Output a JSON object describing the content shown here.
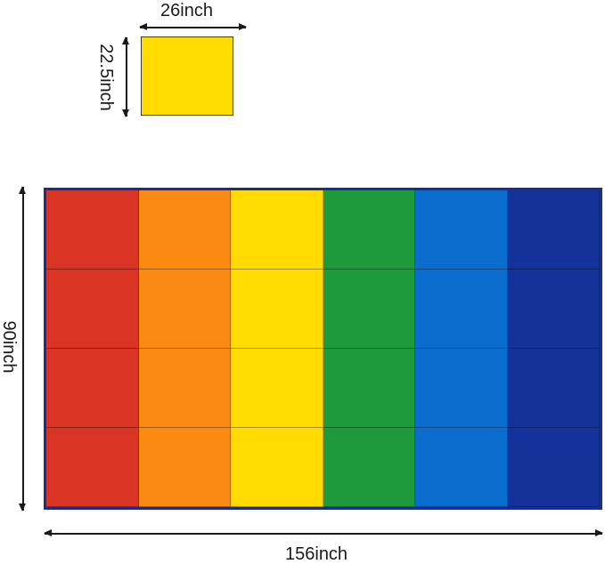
{
  "square": {
    "width_label": "26inch",
    "height_label": "22.5inch",
    "color": "#ffdb00"
  },
  "rug": {
    "height_label": "90inch",
    "width_label": "156inch",
    "border_color": "#1b2f8a",
    "rows": 4,
    "columns": 6,
    "column_colors": [
      "#d93424",
      "#fa8a12",
      "#ffdb00",
      "#1e9a3c",
      "#0a6ccc",
      "#13339a"
    ]
  }
}
